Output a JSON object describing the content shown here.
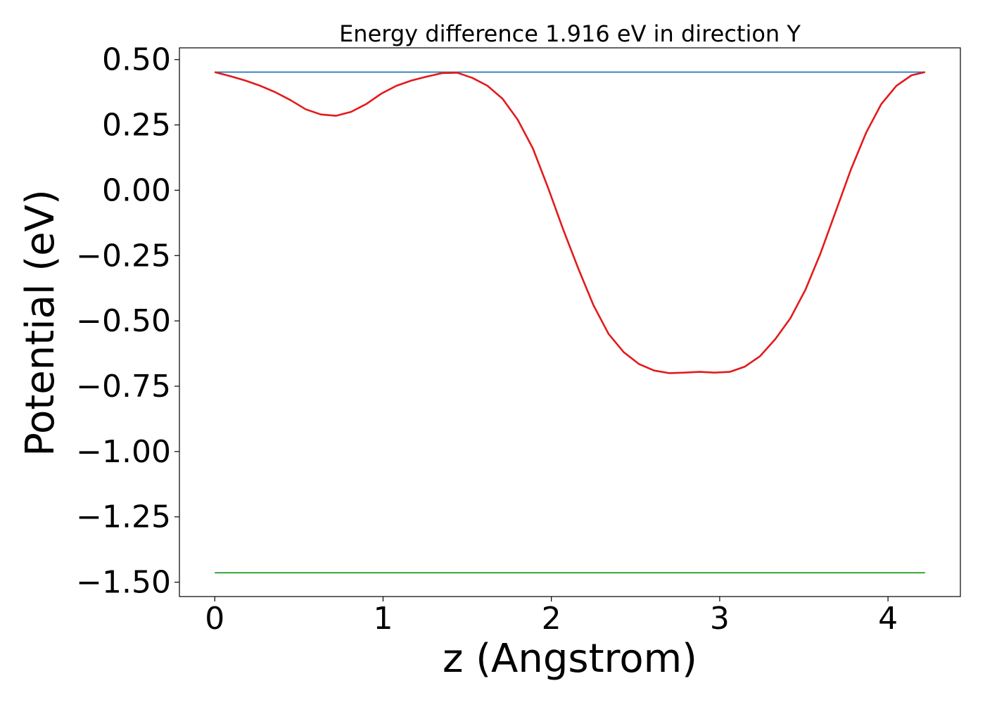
{
  "chart_data": {
    "type": "line",
    "title": "Energy difference 1.916 eV in direction Y",
    "xlabel": "z (Angstrom)",
    "ylabel": "Potential (eV)",
    "xlim": [
      -0.21,
      4.43
    ],
    "ylim": [
      -1.555,
      0.545
    ],
    "x_ticks": [
      0,
      1,
      2,
      3,
      4
    ],
    "x_tick_labels": [
      "0",
      "1",
      "2",
      "3",
      "4"
    ],
    "y_ticks": [
      0.5,
      0.25,
      0.0,
      -0.25,
      -0.5,
      -0.75,
      -1.0,
      -1.25,
      -1.5
    ],
    "y_tick_labels": [
      "0.50",
      "0.25",
      "0.00",
      "−0.25",
      "−0.50",
      "−0.75",
      "−1.00",
      "−1.25",
      "−1.50"
    ],
    "grid": false,
    "series": [
      {
        "color": "#1f77b4",
        "x": [
          0,
          4.22
        ],
        "y": [
          0.452,
          0.452
        ]
      },
      {
        "color": "#2ca02c",
        "x": [
          0,
          4.22
        ],
        "y": [
          -1.464,
          -1.464
        ]
      },
      {
        "color": "#e31a1c",
        "x": [
          0,
          0.09,
          0.18,
          0.27,
          0.36,
          0.45,
          0.54,
          0.63,
          0.72,
          0.81,
          0.9,
          0.99,
          1.08,
          1.17,
          1.26,
          1.35,
          1.44,
          1.53,
          1.62,
          1.71,
          1.8,
          1.89,
          1.98,
          2.07,
          2.16,
          2.25,
          2.34,
          2.43,
          2.52,
          2.61,
          2.7,
          2.79,
          2.88,
          2.97,
          3.06,
          3.15,
          3.24,
          3.33,
          3.42,
          3.51,
          3.6,
          3.69,
          3.78,
          3.87,
          3.96,
          4.05,
          4.14,
          4.22
        ],
        "y": [
          0.452,
          0.437,
          0.42,
          0.4,
          0.375,
          0.345,
          0.31,
          0.29,
          0.285,
          0.3,
          0.33,
          0.37,
          0.4,
          0.42,
          0.435,
          0.448,
          0.45,
          0.43,
          0.4,
          0.35,
          0.27,
          0.16,
          0.01,
          -0.15,
          -0.3,
          -0.44,
          -0.55,
          -0.62,
          -0.665,
          -0.69,
          -0.7,
          -0.698,
          -0.695,
          -0.698,
          -0.695,
          -0.675,
          -0.635,
          -0.57,
          -0.49,
          -0.38,
          -0.24,
          -0.08,
          0.08,
          0.22,
          0.33,
          0.4,
          0.44,
          0.452
        ]
      }
    ]
  }
}
